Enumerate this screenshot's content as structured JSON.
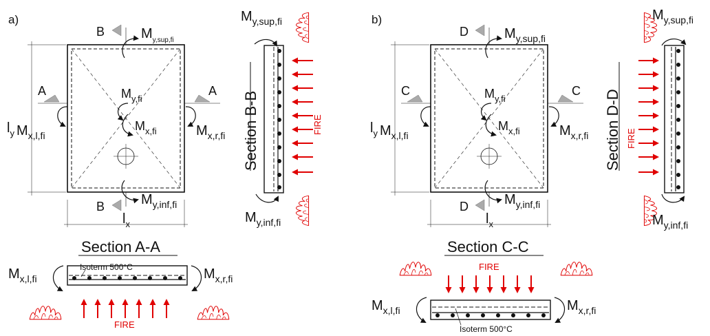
{
  "panels": [
    {
      "label": "a)",
      "top_marker": "B",
      "bottom_marker": "B",
      "left_marker": "A",
      "right_marker": "A",
      "m_sup": "y,sup,fi",
      "m_inf": "y,inf,fi",
      "m_left": "x,l,fi",
      "m_right": "x,r,fi",
      "m_center_y": "y,fi",
      "m_center_x": "x,fi",
      "ly_sub": "y",
      "lx_sub": "x",
      "section_plan": "Section A-A",
      "section_side": "Section B-B",
      "fire": "FIRE",
      "isoterm": "Isoterm 500°C"
    },
    {
      "label": "b)",
      "top_marker": "D",
      "bottom_marker": "D",
      "left_marker": "C",
      "right_marker": "C",
      "m_sup": "y,sup,fi",
      "m_inf": "y,inf,fi",
      "m_left": "x,l,fi",
      "m_right": "x,r,fi",
      "m_center_y": "y,fi",
      "m_center_x": "x,fi",
      "ly_sub": "y",
      "lx_sub": "x",
      "section_plan": "Section C-C",
      "section_side": "Section D-D",
      "fire": "FIRE",
      "isoterm": "Isoterm 500°C"
    }
  ],
  "symbols": {
    "moment": "M",
    "length": "l"
  },
  "colors": {
    "fire": "#e00000",
    "line": "#111111",
    "marker": "#aaaaaa"
  }
}
